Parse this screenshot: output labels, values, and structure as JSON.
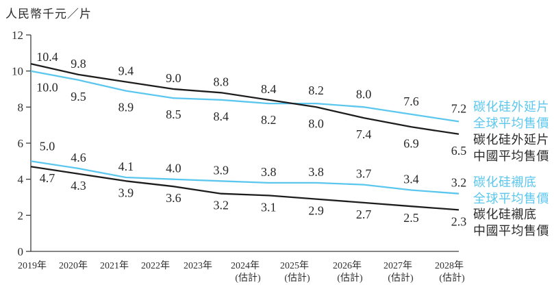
{
  "title": "人民幣千元／片",
  "colors": {
    "global_blue": "#5BC7EF",
    "china_black": "#1D1D1D",
    "axis": "#3C3C3C",
    "label_text": "#262626",
    "tick_text": "#2E2E2E"
  },
  "chart_data": {
    "type": "line",
    "title": "人民幣千元／片",
    "ylabel": "人民幣千元／片",
    "xlabel": "",
    "ylim": [
      0,
      12
    ],
    "yticks": [
      "0",
      "2",
      "4",
      "6",
      "8",
      "10",
      "12"
    ],
    "grid": false,
    "legend_position": "right",
    "categories": [
      "2019年",
      "2020年",
      "2021年",
      "2022年",
      "2023年",
      "2024年",
      "2025年",
      "2026年",
      "2027年",
      "2028年"
    ],
    "category_notes": [
      "",
      "",
      "",
      "",
      "",
      "(估計)",
      "(估計)",
      "(估計)",
      "(估計)",
      "(估計)"
    ],
    "series": [
      {
        "name": "碳化硅外延片全球平均售價",
        "legend_lines": [
          "碳化硅外延片",
          "全球平均售價"
        ],
        "color_key": "global_blue",
        "values": [
          10.0,
          9.5,
          8.9,
          8.5,
          8.4,
          8.2,
          8.2,
          8.0,
          7.6,
          7.2
        ],
        "label_sides": [
          "below",
          "below",
          "below",
          "below",
          "below",
          "below",
          "above",
          "above",
          "above",
          "above"
        ]
      },
      {
        "name": "碳化硅外延片中國平均售價",
        "legend_lines": [
          "碳化硅外延片",
          "中國平均售價"
        ],
        "color_key": "china_black",
        "values": [
          10.4,
          9.8,
          9.4,
          9.0,
          8.8,
          8.4,
          8.0,
          7.4,
          6.9,
          6.5
        ],
        "label_sides": [
          "above",
          "above",
          "above",
          "above",
          "above",
          "above",
          "below",
          "below",
          "below",
          "below"
        ]
      },
      {
        "name": "碳化硅襯底全球平均售價",
        "legend_lines": [
          "碳化硅襯底",
          "全球平均售價"
        ],
        "color_key": "global_blue",
        "values": [
          5.0,
          4.6,
          4.1,
          4.0,
          3.9,
          3.8,
          3.8,
          3.7,
          3.4,
          3.2
        ],
        "label_sides": [
          "above",
          "above",
          "above",
          "above",
          "above",
          "above",
          "above",
          "above",
          "above",
          "above"
        ]
      },
      {
        "name": "碳化硅襯底中國平均售價",
        "legend_lines": [
          "碳化硅襯底",
          "中國平均售價"
        ],
        "color_key": "china_black",
        "values": [
          4.7,
          4.3,
          3.9,
          3.6,
          3.2,
          3.1,
          2.9,
          2.7,
          2.5,
          2.3
        ],
        "label_sides": [
          "below",
          "below",
          "below",
          "below",
          "below",
          "below",
          "below",
          "below",
          "below",
          "below"
        ]
      }
    ]
  }
}
